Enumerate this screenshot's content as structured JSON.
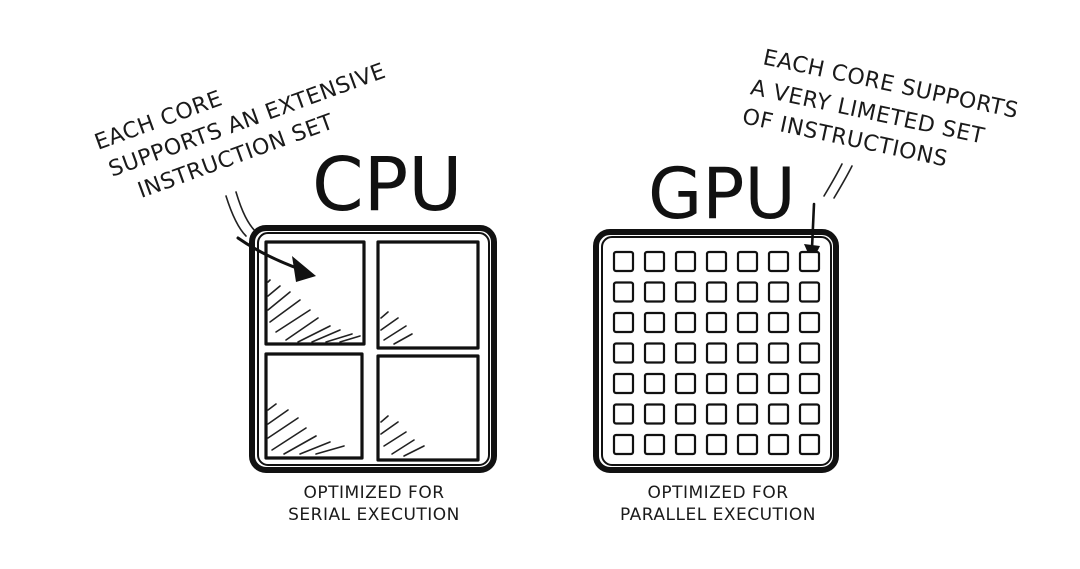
{
  "cpu": {
    "title": "CPU",
    "annotation": [
      "EACH CORE",
      "SUPPORTS AN EXTENSIVE",
      "INSTRUCTION SET"
    ],
    "caption": [
      "OPTIMIZED FOR",
      "SERIAL EXECUTION"
    ],
    "core_count": 4
  },
  "gpu": {
    "title": "GPU",
    "annotation": [
      "EACH CORE SUPPORTS",
      "A VERY LIMETED SET",
      "OF INSTRUCTIONS"
    ],
    "caption": [
      "OPTIMIZED FOR",
      "PARALLEL EXECUTION"
    ],
    "core_rows": 7,
    "core_cols": 7
  },
  "colors": {
    "ink": "#111111",
    "background": "#ffffff"
  }
}
